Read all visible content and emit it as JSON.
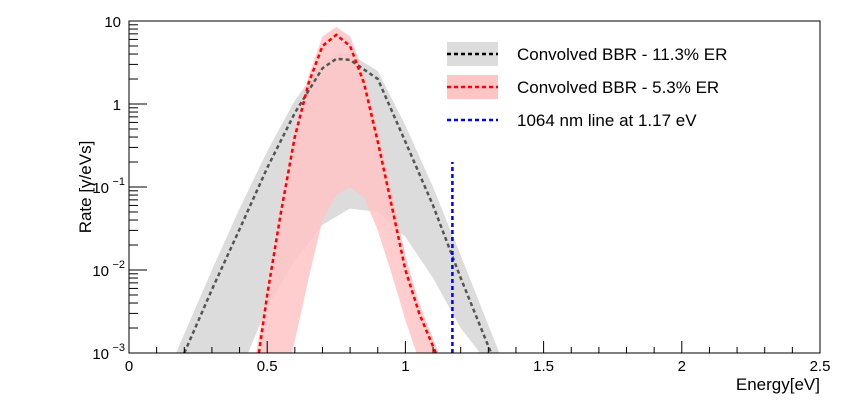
{
  "chart_data": {
    "type": "line",
    "title": "",
    "xlabel": "Energy[eV]",
    "ylabel": "Rate [γ/eVs]",
    "xlim": [
      0,
      2.5
    ],
    "ylim": [
      0.001,
      10
    ],
    "yscale": "log",
    "x_ticks": [
      {
        "value": 0,
        "label": "0"
      },
      {
        "value": 0.5,
        "label": "0.5"
      },
      {
        "value": 1,
        "label": "1"
      },
      {
        "value": 1.5,
        "label": "1.5"
      },
      {
        "value": 2,
        "label": "2"
      },
      {
        "value": 2.5,
        "label": "2.5"
      }
    ],
    "y_ticks": [
      {
        "value": 0.001,
        "base": "10",
        "exp": "−3"
      },
      {
        "value": 0.01,
        "base": "10",
        "exp": "−2"
      },
      {
        "value": 0.1,
        "base": "10",
        "exp": "−1"
      },
      {
        "value": 1,
        "base": "1",
        "exp": ""
      },
      {
        "value": 10,
        "base": "10",
        "exp": ""
      }
    ],
    "series": [
      {
        "name": "Convolved BBR - 11.3% ER",
        "line_color": "#555555",
        "band_color": "#dcdcdc",
        "center": {
          "x": [
            0.2,
            0.3,
            0.4,
            0.5,
            0.6,
            0.7,
            0.75,
            0.8,
            0.9,
            1.0,
            1.1,
            1.2,
            1.31
          ],
          "y": [
            0.001,
            0.0058,
            0.031,
            0.17,
            0.78,
            2.7,
            3.5,
            3.4,
            2.0,
            0.35,
            0.06,
            0.008,
            0.001
          ]
        },
        "band_upper": {
          "x": [
            0.17,
            0.3,
            0.4,
            0.5,
            0.6,
            0.7,
            0.75,
            0.8,
            0.9,
            1.0,
            1.1,
            1.2,
            1.34
          ],
          "y": [
            0.001,
            0.01,
            0.055,
            0.27,
            1.1,
            3.2,
            4.0,
            4.0,
            2.5,
            0.55,
            0.1,
            0.015,
            0.001
          ]
        },
        "band_lower": {
          "x": [
            0.43,
            0.5,
            0.6,
            0.7,
            0.8,
            0.9,
            1.0,
            1.1,
            1.2,
            1.27
          ],
          "y": [
            0.001,
            0.0035,
            0.013,
            0.035,
            0.055,
            0.05,
            0.025,
            0.008,
            0.002,
            0.001
          ]
        }
      },
      {
        "name": "Convolved BBR - 5.3% ER",
        "line_color": "#ff0000",
        "band_color": "#ffc4c4",
        "center": {
          "x": [
            0.47,
            0.5,
            0.55,
            0.6,
            0.65,
            0.7,
            0.75,
            0.8,
            0.85,
            0.9,
            0.95,
            1.0,
            1.05,
            1.11
          ],
          "y": [
            0.001,
            0.005,
            0.05,
            0.4,
            1.8,
            5.0,
            6.8,
            5.0,
            1.8,
            0.35,
            0.06,
            0.01,
            0.003,
            0.001
          ]
        },
        "band_upper": {
          "x": [
            0.46,
            0.5,
            0.55,
            0.6,
            0.65,
            0.7,
            0.75,
            0.8,
            0.85,
            0.9,
            0.95,
            1.0,
            1.05,
            1.12
          ],
          "y": [
            0.001,
            0.006,
            0.06,
            0.5,
            2.2,
            6.5,
            8.5,
            6.5,
            2.4,
            0.5,
            0.09,
            0.015,
            0.004,
            0.001
          ]
        },
        "band_lower": {
          "x": [
            0.59,
            0.65,
            0.7,
            0.75,
            0.8,
            0.85,
            0.9,
            0.95,
            1.0,
            1.04
          ],
          "y": [
            0.001,
            0.008,
            0.04,
            0.08,
            0.1,
            0.075,
            0.03,
            0.009,
            0.0025,
            0.001
          ]
        }
      },
      {
        "name": "1064 nm line at 1.17 eV",
        "line_color": "#0000ff",
        "x": 1.17,
        "y_range": [
          0.001,
          0.2
        ]
      }
    ],
    "legend": {
      "placement": "top-right"
    }
  }
}
